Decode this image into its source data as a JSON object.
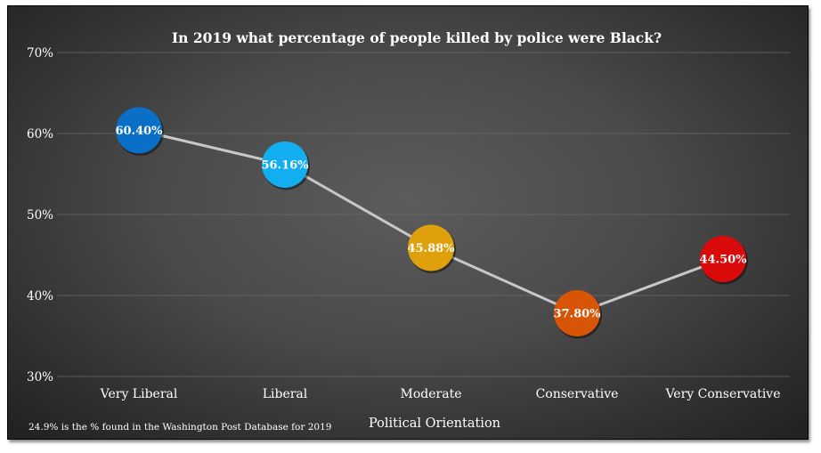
{
  "chart_data": {
    "type": "line",
    "title": "In 2019 what percentage of people killed by police were Black?",
    "xlabel": "Political Orientation",
    "ylabel": "",
    "categories": [
      "Very Liberal",
      "Liberal",
      "Moderate",
      "Conservative",
      "Very Conservative"
    ],
    "values": [
      60.4,
      56.16,
      45.88,
      37.8,
      44.5
    ],
    "data_labels": [
      "60.40%",
      "56.16%",
      "45.88%",
      "37.80%",
      "44.50%"
    ],
    "marker_colors": [
      "#0a6fc6",
      "#12aef0",
      "#dea10c",
      "#d85508",
      "#d80a0a"
    ],
    "line_color": "#c8c8c8",
    "ylim": [
      30,
      70
    ],
    "yticks": [
      30,
      40,
      50,
      60,
      70
    ],
    "ytick_labels": [
      "30%",
      "40%",
      "50%",
      "60%",
      "70%"
    ],
    "grid": true,
    "legend": "none",
    "footnote": "24.9% is the % found in the Washington Post Database for 2019"
  }
}
